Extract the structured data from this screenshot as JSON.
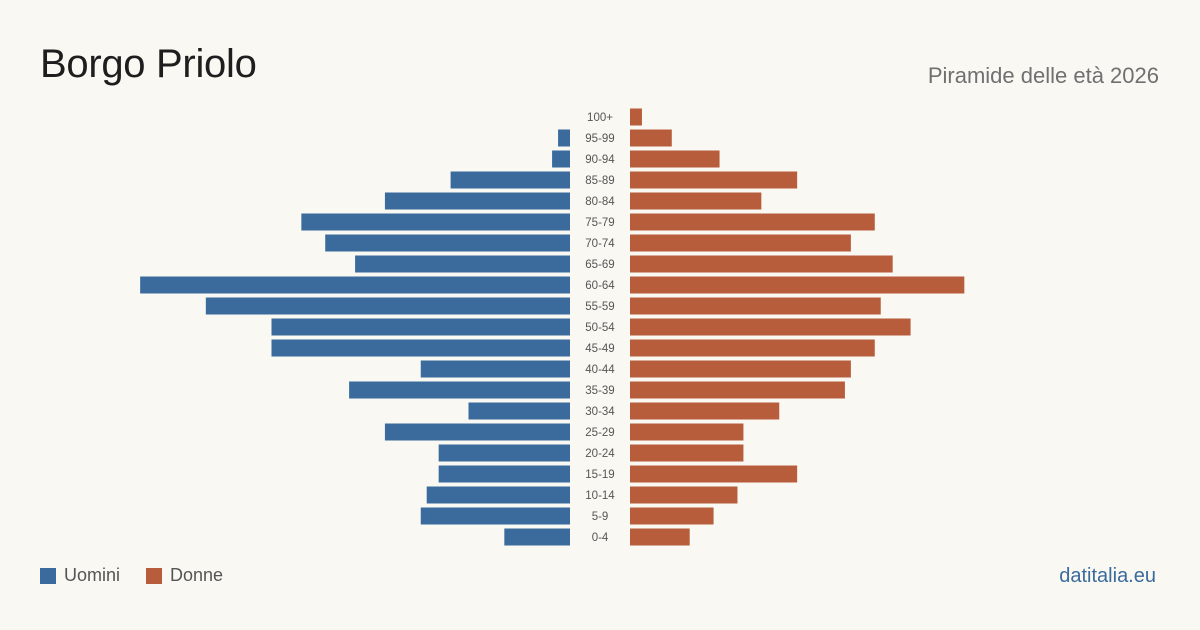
{
  "title": "Borgo Priolo",
  "subtitle": "Piramide delle età 2026",
  "brand": "datitalia.eu",
  "colors": {
    "men": "#3a6b9c",
    "women": "#b85d3c"
  },
  "chart_data": {
    "type": "bar",
    "orientation": "horizontal-pyramid",
    "categories": [
      "0-4",
      "5-9",
      "10-14",
      "15-19",
      "20-24",
      "25-29",
      "30-34",
      "35-39",
      "40-44",
      "45-49",
      "50-54",
      "55-59",
      "60-64",
      "65-69",
      "70-74",
      "75-79",
      "80-84",
      "85-89",
      "90-94",
      "95-99",
      "100+"
    ],
    "series": [
      {
        "name": "Uomini",
        "values": [
          11,
          25,
          24,
          22,
          22,
          31,
          17,
          37,
          25,
          50,
          50,
          61,
          72,
          36,
          41,
          45,
          31,
          20,
          3,
          2,
          0
        ]
      },
      {
        "name": "Donne",
        "values": [
          10,
          14,
          18,
          28,
          19,
          19,
          25,
          36,
          37,
          41,
          47,
          42,
          56,
          44,
          37,
          41,
          22,
          28,
          15,
          7,
          2
        ]
      }
    ],
    "legend": "bottom-left",
    "grid": false
  }
}
